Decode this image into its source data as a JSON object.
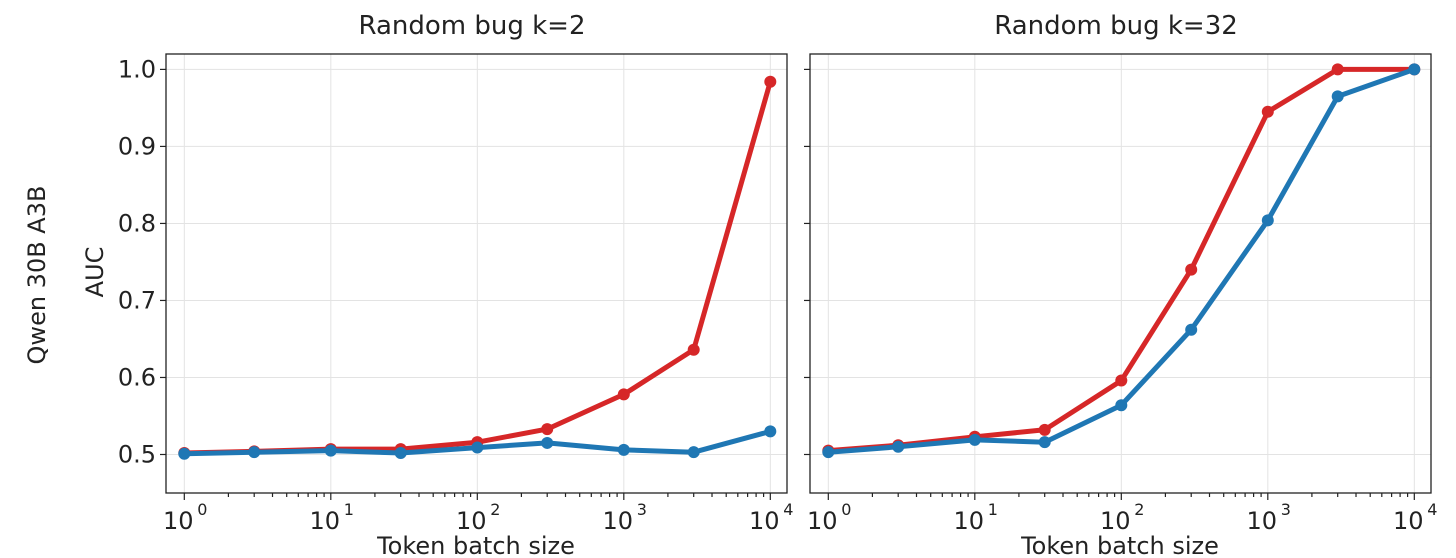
{
  "figure": {
    "row_label": "Qwen 30B A3B"
  },
  "colors": {
    "red": "#d62728",
    "blue": "#1f77b4"
  },
  "chart_data": [
    {
      "type": "line",
      "title": "Random bug k=2",
      "xlabel": "Token batch size",
      "ylabel": "AUC",
      "xscale": "log",
      "xlim": [
        0.75,
        13000
      ],
      "ylim": [
        0.45,
        1.02
      ],
      "xticks": [
        {
          "base": "10",
          "exp": "0"
        },
        {
          "base": "10",
          "exp": "1"
        },
        {
          "base": "10",
          "exp": "2"
        },
        {
          "base": "10",
          "exp": "3"
        },
        {
          "base": "10",
          "exp": "4"
        }
      ],
      "yticks": [
        "0.5",
        "0.6",
        "0.7",
        "0.8",
        "0.9",
        "1.0"
      ],
      "grid": true,
      "x": [
        1,
        3,
        10,
        30,
        100,
        300,
        1000,
        3000,
        10000
      ],
      "series": [
        {
          "color": "#d62728",
          "values": [
            0.502,
            0.504,
            0.507,
            0.507,
            0.516,
            0.533,
            0.578,
            0.636,
            0.984
          ]
        },
        {
          "color": "#1f77b4",
          "values": [
            0.501,
            0.503,
            0.505,
            0.502,
            0.509,
            0.515,
            0.506,
            0.503,
            0.53
          ]
        }
      ]
    },
    {
      "type": "line",
      "title": "Random bug k=32",
      "xlabel": "Token batch size",
      "ylabel": "",
      "xscale": "log",
      "xlim": [
        0.75,
        13000
      ],
      "ylim": [
        0.45,
        1.02
      ],
      "xticks": [
        {
          "base": "10",
          "exp": "0"
        },
        {
          "base": "10",
          "exp": "1"
        },
        {
          "base": "10",
          "exp": "2"
        },
        {
          "base": "10",
          "exp": "3"
        },
        {
          "base": "10",
          "exp": "4"
        }
      ],
      "yticks": [],
      "grid": true,
      "x": [
        1,
        3,
        10,
        30,
        100,
        300,
        1000,
        3000,
        10000
      ],
      "series": [
        {
          "color": "#d62728",
          "values": [
            0.505,
            0.512,
            0.523,
            0.532,
            0.596,
            0.74,
            0.945,
            1.0,
            1.0
          ]
        },
        {
          "color": "#1f77b4",
          "values": [
            0.503,
            0.51,
            0.519,
            0.516,
            0.564,
            0.662,
            0.804,
            0.965,
            1.0
          ]
        }
      ]
    }
  ]
}
